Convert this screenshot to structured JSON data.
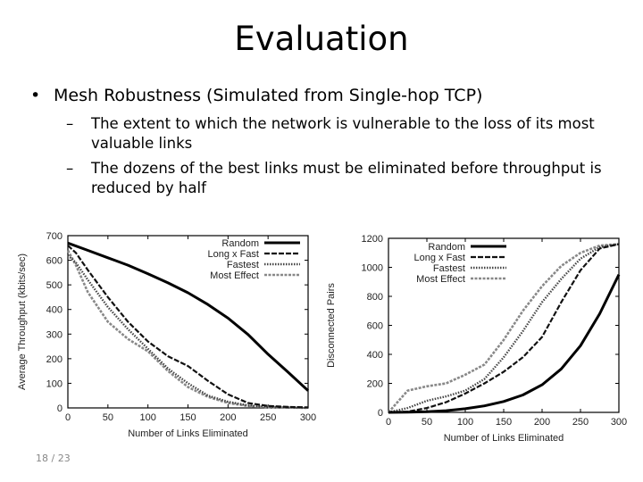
{
  "slide": {
    "title": "Evaluation",
    "bullet": "Mesh Robustness (Simulated from Single-hop TCP)",
    "sub_bullets": [
      "The extent to which the network is vulnerable to the loss of its most valuable links",
      "The dozens of the best links must be eliminated before throughput is reduced by half"
    ],
    "page_number": "18 / 23"
  },
  "chart_data": [
    {
      "type": "line",
      "xlabel": "Number of Links Eliminated",
      "ylabel": "Average Throughput (kbits/sec)",
      "xlim": [
        0,
        300
      ],
      "ylim": [
        0,
        700
      ],
      "xticks": [
        0,
        50,
        100,
        150,
        200,
        250,
        300
      ],
      "yticks": [
        0,
        100,
        200,
        300,
        400,
        500,
        600,
        700
      ],
      "legend_position": "top-right",
      "series": [
        {
          "name": "Random",
          "style": "solid",
          "x": [
            0,
            25,
            50,
            75,
            100,
            125,
            150,
            175,
            200,
            225,
            250,
            275,
            300
          ],
          "y": [
            670,
            640,
            610,
            580,
            545,
            508,
            468,
            420,
            365,
            298,
            218,
            145,
            70
          ]
        },
        {
          "name": "Long x Fast",
          "style": "dashed",
          "x": [
            0,
            10,
            25,
            50,
            75,
            100,
            125,
            150,
            175,
            200,
            225,
            250,
            275,
            300
          ],
          "y": [
            660,
            630,
            560,
            450,
            350,
            270,
            210,
            170,
            110,
            55,
            20,
            8,
            4,
            2
          ]
        },
        {
          "name": "Fastest",
          "style": "dotted",
          "x": [
            0,
            10,
            25,
            50,
            75,
            100,
            125,
            150,
            175,
            200,
            225,
            250,
            275,
            300
          ],
          "y": [
            620,
            590,
            520,
            410,
            320,
            240,
            160,
            100,
            50,
            25,
            10,
            5,
            2,
            1
          ]
        },
        {
          "name": "Most Effect",
          "style": "dash-dot",
          "x": [
            0,
            10,
            25,
            50,
            75,
            100,
            125,
            150,
            175,
            200,
            225,
            250,
            275,
            300
          ],
          "y": [
            640,
            580,
            470,
            350,
            280,
            230,
            150,
            85,
            45,
            20,
            8,
            3,
            1,
            0
          ]
        }
      ]
    },
    {
      "type": "line",
      "xlabel": "Number of Links Eliminated",
      "ylabel": "Disconnected Pairs",
      "xlim": [
        0,
        300
      ],
      "ylim": [
        0,
        1200
      ],
      "xticks": [
        0,
        50,
        100,
        150,
        200,
        250,
        300
      ],
      "yticks": [
        0,
        200,
        400,
        600,
        800,
        1000,
        1200
      ],
      "legend_position": "top-left",
      "series": [
        {
          "name": "Random",
          "style": "solid",
          "x": [
            0,
            25,
            50,
            75,
            100,
            125,
            150,
            175,
            200,
            225,
            250,
            275,
            300
          ],
          "y": [
            0,
            2,
            5,
            12,
            25,
            45,
            75,
            120,
            190,
            300,
            460,
            680,
            950
          ]
        },
        {
          "name": "Long x Fast",
          "style": "dashed",
          "x": [
            0,
            25,
            50,
            75,
            100,
            125,
            150,
            175,
            200,
            225,
            250,
            275,
            300
          ],
          "y": [
            0,
            5,
            30,
            70,
            130,
            200,
            280,
            380,
            520,
            760,
            980,
            1130,
            1160
          ]
        },
        {
          "name": "Fastest",
          "style": "dotted",
          "x": [
            0,
            25,
            50,
            75,
            100,
            125,
            150,
            175,
            200,
            225,
            250,
            275,
            300
          ],
          "y": [
            0,
            30,
            80,
            110,
            150,
            230,
            380,
            560,
            760,
            920,
            1060,
            1140,
            1160
          ]
        },
        {
          "name": "Most Effect",
          "style": "dash-dot",
          "x": [
            0,
            25,
            50,
            75,
            100,
            125,
            150,
            175,
            200,
            225,
            250,
            275,
            300
          ],
          "y": [
            0,
            150,
            180,
            200,
            260,
            330,
            500,
            700,
            870,
            1010,
            1100,
            1150,
            1160
          ]
        }
      ]
    }
  ]
}
